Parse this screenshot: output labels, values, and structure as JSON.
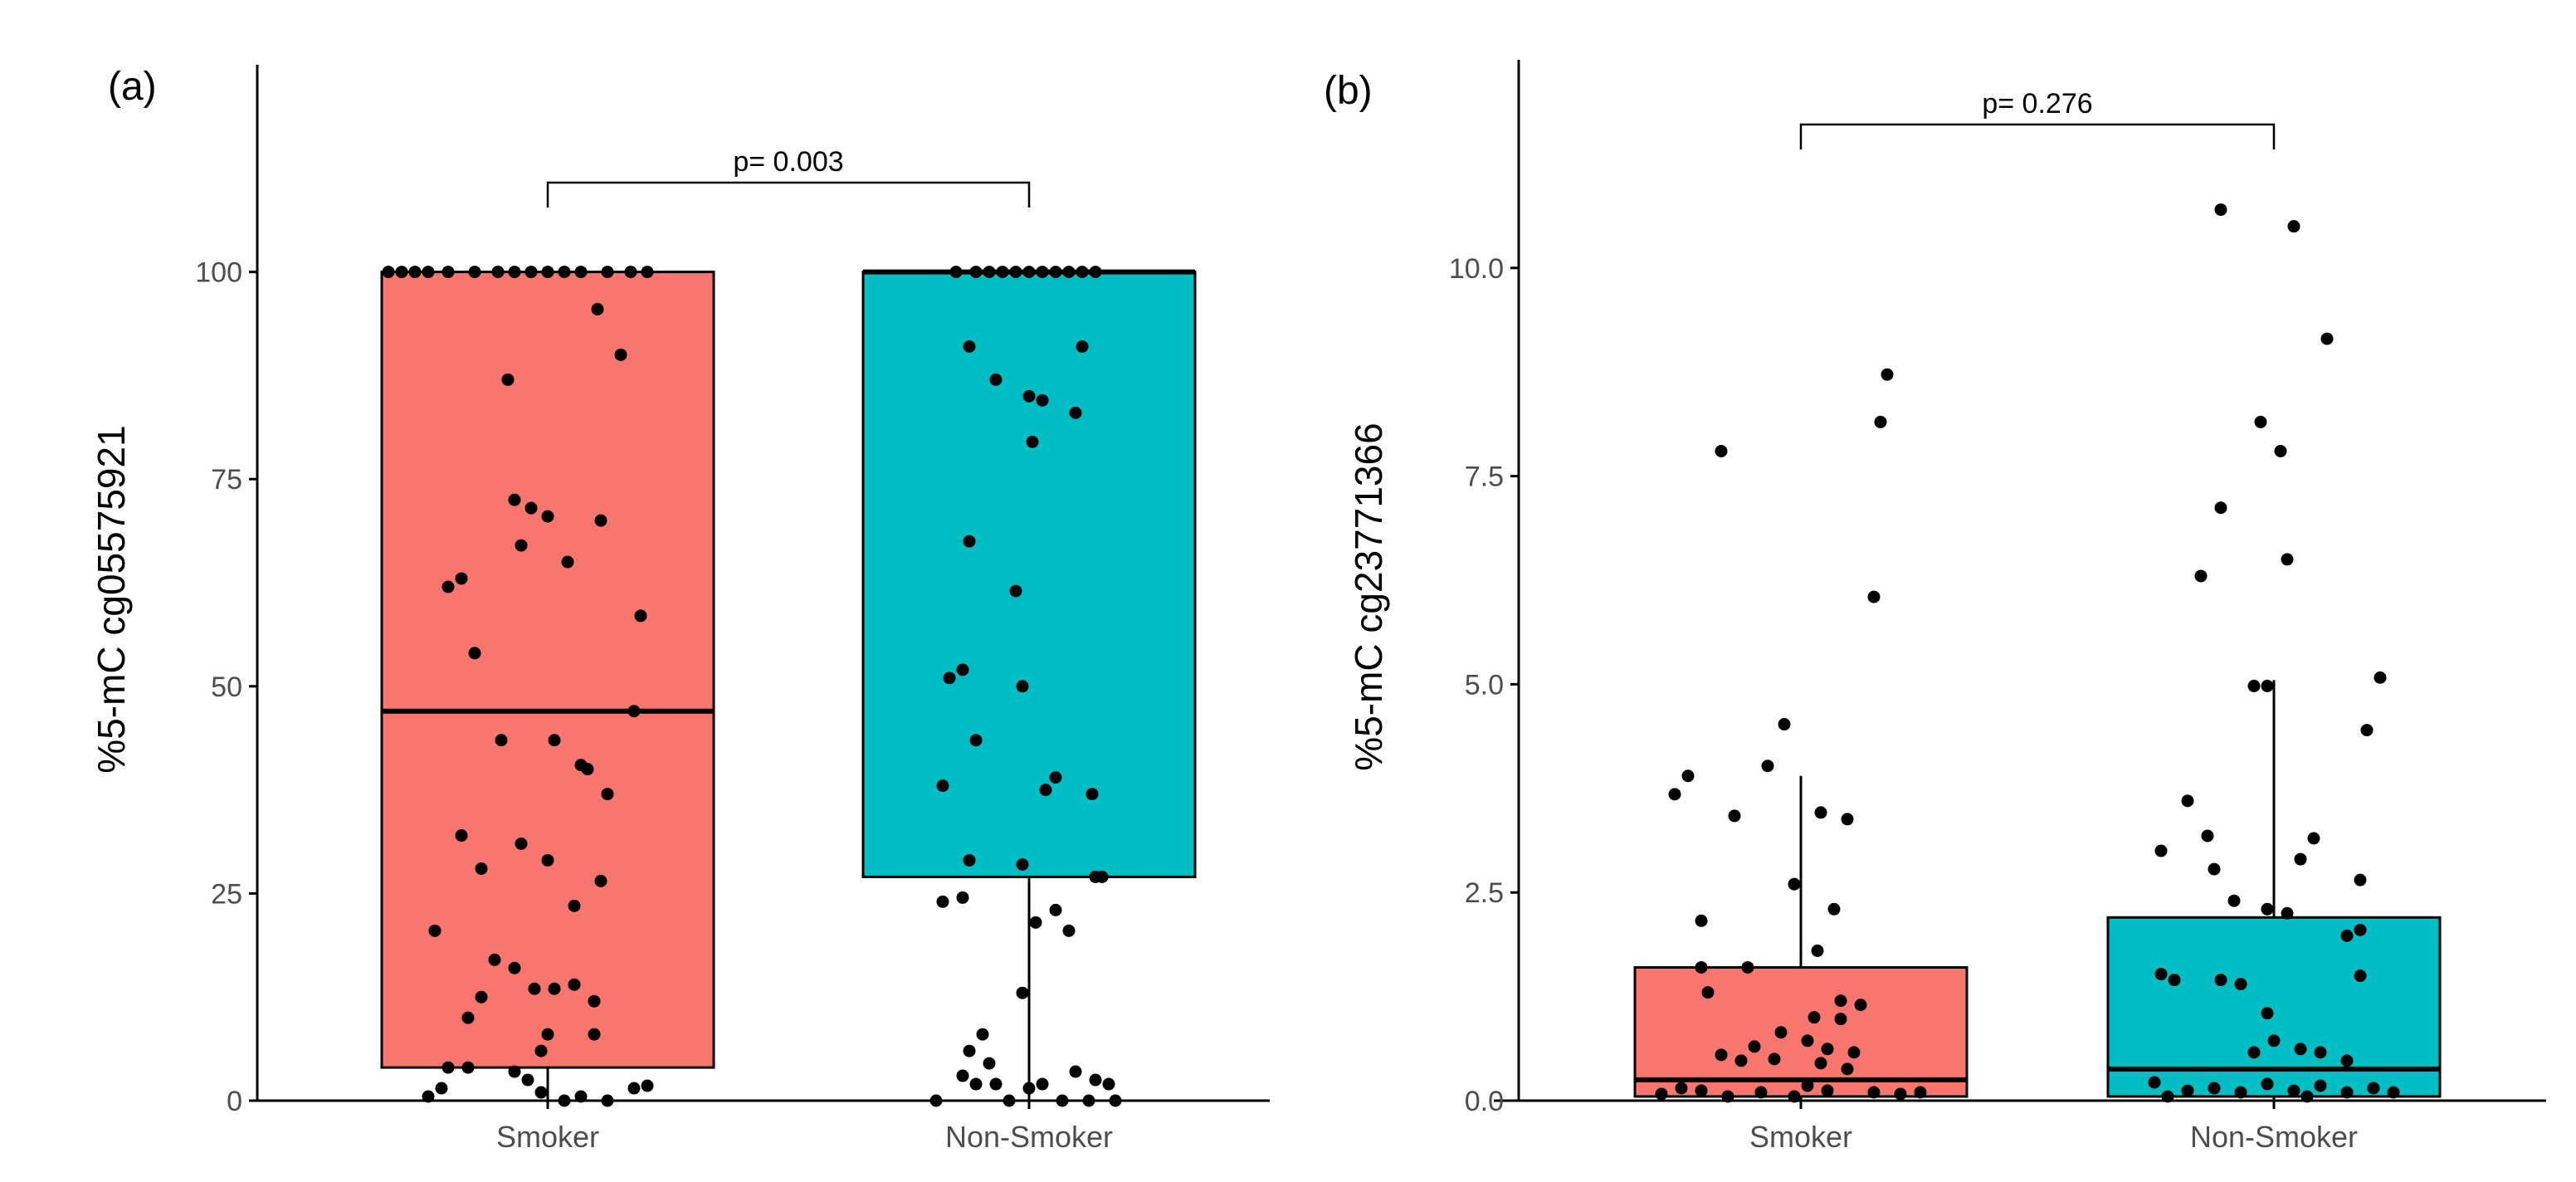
{
  "chart_data": [
    {
      "type": "box",
      "panel_label": "(a)",
      "ylabel": "%5-mC cg05575921",
      "ylim": [
        0,
        125
      ],
      "yticks": [
        0,
        25,
        50,
        75,
        100
      ],
      "ytick_labels": [
        "0",
        "25",
        "50",
        "75",
        "100"
      ],
      "categories": [
        "Smoker",
        "Non-Smoker"
      ],
      "p_value_label": "p= 0.003",
      "boxes": [
        {
          "category": "Smoker",
          "color": "#F8766D",
          "whisker_low": 0,
          "q1": 4,
          "median": 47,
          "q3": 100,
          "whisker_high": 100
        },
        {
          "category": "Non-Smoker",
          "color": "#00BFC4",
          "whisker_low": 0,
          "q1": 27,
          "median": 100,
          "q3": 100,
          "whisker_high": 100
        }
      ],
      "points": [
        [
          [
            -0.48,
            100
          ],
          [
            -0.44,
            100
          ],
          [
            -0.4,
            100
          ],
          [
            -0.36,
            100
          ],
          [
            -0.3,
            100
          ],
          [
            -0.22,
            100
          ],
          [
            -0.15,
            100
          ],
          [
            -0.1,
            100
          ],
          [
            -0.05,
            100
          ],
          [
            0.0,
            100
          ],
          [
            0.05,
            100
          ],
          [
            0.1,
            100
          ],
          [
            0.18,
            100
          ],
          [
            0.25,
            100
          ],
          [
            0.3,
            100
          ],
          [
            0.15,
            95.5
          ],
          [
            0.22,
            90
          ],
          [
            -0.12,
            87
          ],
          [
            -0.1,
            72.5
          ],
          [
            -0.05,
            71.5
          ],
          [
            0.0,
            70.5
          ],
          [
            0.16,
            70
          ],
          [
            -0.08,
            67
          ],
          [
            0.06,
            65
          ],
          [
            -0.3,
            62
          ],
          [
            -0.26,
            63
          ],
          [
            0.28,
            58.5
          ],
          [
            -0.22,
            54
          ],
          [
            0.26,
            47
          ],
          [
            -0.14,
            43.5
          ],
          [
            0.02,
            43.5
          ],
          [
            0.1,
            40.5
          ],
          [
            0.12,
            40
          ],
          [
            0.18,
            37
          ],
          [
            -0.26,
            32
          ],
          [
            -0.08,
            31
          ],
          [
            0.0,
            29
          ],
          [
            -0.2,
            28
          ],
          [
            0.16,
            26.5
          ],
          [
            0.08,
            23.5
          ],
          [
            -0.34,
            20.5
          ],
          [
            -0.16,
            17
          ],
          [
            -0.1,
            16
          ],
          [
            -0.04,
            13.5
          ],
          [
            0.02,
            13.5
          ],
          [
            0.08,
            14
          ],
          [
            -0.2,
            12.5
          ],
          [
            0.14,
            12
          ],
          [
            -0.24,
            10
          ],
          [
            0.0,
            8
          ],
          [
            0.14,
            8
          ],
          [
            -0.02,
            6
          ],
          [
            -0.3,
            4
          ],
          [
            -0.24,
            4
          ],
          [
            -0.1,
            3.5
          ],
          [
            -0.06,
            2.5
          ],
          [
            -0.02,
            1
          ],
          [
            0.05,
            0
          ],
          [
            0.1,
            0.5
          ],
          [
            0.18,
            0
          ],
          [
            0.26,
            1.5
          ],
          [
            0.3,
            1.8
          ],
          [
            -0.36,
            0.5
          ],
          [
            -0.32,
            1.5
          ]
        ],
        [
          [
            -0.22,
            100
          ],
          [
            -0.16,
            100
          ],
          [
            -0.12,
            100
          ],
          [
            -0.08,
            100
          ],
          [
            -0.04,
            100
          ],
          [
            0.0,
            100
          ],
          [
            0.04,
            100
          ],
          [
            0.08,
            100
          ],
          [
            0.12,
            100
          ],
          [
            0.16,
            100
          ],
          [
            0.2,
            100
          ],
          [
            -0.18,
            91
          ],
          [
            0.16,
            91
          ],
          [
            -0.1,
            87
          ],
          [
            0.0,
            85
          ],
          [
            0.04,
            84.5
          ],
          [
            0.14,
            83
          ],
          [
            0.01,
            79.5
          ],
          [
            -0.18,
            67.5
          ],
          [
            -0.04,
            61.5
          ],
          [
            -0.24,
            51
          ],
          [
            -0.2,
            52
          ],
          [
            -0.02,
            50
          ],
          [
            -0.16,
            43.5
          ],
          [
            0.05,
            37.5
          ],
          [
            0.08,
            39
          ],
          [
            0.19,
            37
          ],
          [
            -0.26,
            38
          ],
          [
            -0.18,
            29
          ],
          [
            -0.02,
            28.5
          ],
          [
            0.2,
            27
          ],
          [
            0.22,
            27
          ],
          [
            -0.26,
            24
          ],
          [
            -0.2,
            24.5
          ],
          [
            0.02,
            21.5
          ],
          [
            0.08,
            23
          ],
          [
            0.12,
            20.5
          ],
          [
            -0.02,
            13
          ],
          [
            -0.14,
            8
          ],
          [
            -0.18,
            6
          ],
          [
            -0.12,
            4.5
          ],
          [
            -0.2,
            3
          ],
          [
            -0.16,
            2
          ],
          [
            -0.1,
            2
          ],
          [
            0.0,
            1.5
          ],
          [
            0.04,
            2
          ],
          [
            0.14,
            3.5
          ],
          [
            0.2,
            2.5
          ],
          [
            0.24,
            2
          ],
          [
            -0.06,
            0
          ],
          [
            0.1,
            0
          ],
          [
            0.18,
            0
          ],
          [
            0.26,
            0
          ],
          [
            -0.28,
            0
          ]
        ]
      ]
    },
    {
      "type": "box",
      "panel_label": "(b)",
      "ylabel": "%5-mC cg23771366",
      "ylim": [
        0,
        12.5
      ],
      "yticks": [
        0,
        2.5,
        5,
        7.5,
        10
      ],
      "ytick_labels": [
        "0.0",
        "2.5",
        "5.0",
        "7.5",
        "10.0"
      ],
      "categories": [
        "Smoker",
        "Non-Smoker"
      ],
      "p_value_label": "p= 0.276",
      "boxes": [
        {
          "category": "Smoker",
          "color": "#F8766D",
          "whisker_low": 0,
          "q1": 0.05,
          "median": 0.25,
          "q3": 1.6,
          "whisker_high": 3.9
        },
        {
          "category": "Non-Smoker",
          "color": "#00BFC4",
          "whisker_low": 0,
          "q1": 0.05,
          "median": 0.38,
          "q3": 2.2,
          "whisker_high": 5.05
        }
      ],
      "points": [
        [
          [
            0.26,
            8.72
          ],
          [
            0.24,
            8.15
          ],
          [
            -0.24,
            7.8
          ],
          [
            0.22,
            6.05
          ],
          [
            -0.05,
            4.52
          ],
          [
            -0.34,
            3.9
          ],
          [
            -0.1,
            4.02
          ],
          [
            -0.38,
            3.68
          ],
          [
            -0.2,
            3.42
          ],
          [
            0.06,
            3.46
          ],
          [
            0.14,
            3.38
          ],
          [
            -0.02,
            2.6
          ],
          [
            0.1,
            2.3
          ],
          [
            -0.3,
            2.16
          ],
          [
            0.05,
            1.8
          ],
          [
            -0.16,
            1.6
          ],
          [
            -0.3,
            1.6
          ],
          [
            -0.28,
            1.3
          ],
          [
            0.12,
            1.2
          ],
          [
            0.18,
            1.15
          ],
          [
            0.04,
            1.0
          ],
          [
            0.12,
            0.98
          ],
          [
            -0.06,
            0.82
          ],
          [
            0.02,
            0.72
          ],
          [
            -0.14,
            0.65
          ],
          [
            0.08,
            0.62
          ],
          [
            0.16,
            0.58
          ],
          [
            -0.24,
            0.55
          ],
          [
            -0.08,
            0.5
          ],
          [
            -0.18,
            0.48
          ],
          [
            0.06,
            0.45
          ],
          [
            0.14,
            0.38
          ],
          [
            -0.42,
            0.08
          ],
          [
            -0.3,
            0.12
          ],
          [
            -0.22,
            0.05
          ],
          [
            -0.12,
            0.1
          ],
          [
            -0.02,
            0.05
          ],
          [
            0.08,
            0.12
          ],
          [
            0.22,
            0.1
          ],
          [
            0.3,
            0.08
          ],
          [
            0.36,
            0.1
          ],
          [
            -0.36,
            0.15
          ],
          [
            0.02,
            0.18
          ]
        ],
        [
          [
            -0.16,
            10.7
          ],
          [
            0.06,
            10.5
          ],
          [
            0.16,
            9.15
          ],
          [
            -0.04,
            8.15
          ],
          [
            0.02,
            7.8
          ],
          [
            -0.16,
            7.12
          ],
          [
            0.04,
            6.5
          ],
          [
            -0.22,
            6.3
          ],
          [
            -0.06,
            4.98
          ],
          [
            -0.02,
            4.98
          ],
          [
            0.32,
            5.08
          ],
          [
            0.28,
            4.45
          ],
          [
            -0.26,
            3.6
          ],
          [
            -0.2,
            3.18
          ],
          [
            -0.34,
            3.0
          ],
          [
            0.12,
            3.15
          ],
          [
            0.08,
            2.9
          ],
          [
            -0.18,
            2.78
          ],
          [
            0.26,
            2.65
          ],
          [
            -0.12,
            2.4
          ],
          [
            -0.02,
            2.3
          ],
          [
            0.04,
            2.25
          ],
          [
            0.26,
            2.05
          ],
          [
            0.22,
            1.98
          ],
          [
            -0.34,
            1.52
          ],
          [
            -0.3,
            1.45
          ],
          [
            -0.16,
            1.45
          ],
          [
            -0.1,
            1.4
          ],
          [
            0.26,
            1.5
          ],
          [
            -0.02,
            1.05
          ],
          [
            0.0,
            0.72
          ],
          [
            0.08,
            0.62
          ],
          [
            -0.06,
            0.58
          ],
          [
            0.14,
            0.58
          ],
          [
            0.22,
            0.48
          ],
          [
            -0.36,
            0.22
          ],
          [
            -0.26,
            0.12
          ],
          [
            -0.18,
            0.15
          ],
          [
            -0.1,
            0.1
          ],
          [
            -0.02,
            0.2
          ],
          [
            0.06,
            0.12
          ],
          [
            0.14,
            0.18
          ],
          [
            0.22,
            0.1
          ],
          [
            0.3,
            0.15
          ],
          [
            0.36,
            0.1
          ],
          [
            -0.32,
            0.05
          ],
          [
            0.1,
            0.05
          ]
        ]
      ]
    }
  ]
}
